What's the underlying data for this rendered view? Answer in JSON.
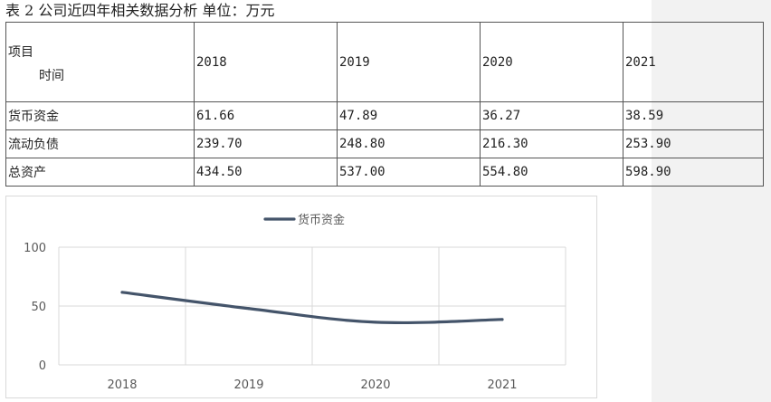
{
  "page": {
    "title": "表 2 公司近四年相关数据分析 单位：万元"
  },
  "table": {
    "header": {
      "item_label": "项目",
      "time_label": "时间",
      "years": [
        "2018",
        "2019",
        "2020",
        "2021"
      ]
    },
    "rows": [
      {
        "label": "货币资金",
        "values": [
          "61.66",
          "47.89",
          "36.27",
          "38.59"
        ]
      },
      {
        "label": "流动负债",
        "values": [
          "239.70",
          "248.80",
          "216.30",
          "253.90"
        ]
      },
      {
        "label": "总资产",
        "values": [
          "434.50",
          "537.00",
          "554.80",
          "598.90"
        ]
      }
    ]
  },
  "chart_data": {
    "type": "line",
    "title": "",
    "categories": [
      "2018",
      "2019",
      "2020",
      "2021"
    ],
    "series": [
      {
        "name": "货币资金",
        "values": [
          61.66,
          47.89,
          36.27,
          38.59
        ],
        "color": "#44546a"
      }
    ],
    "yticks": [
      "0",
      "50",
      "100"
    ],
    "ylim": [
      0,
      100
    ],
    "legend": "top",
    "xlabel": "",
    "ylabel": ""
  }
}
